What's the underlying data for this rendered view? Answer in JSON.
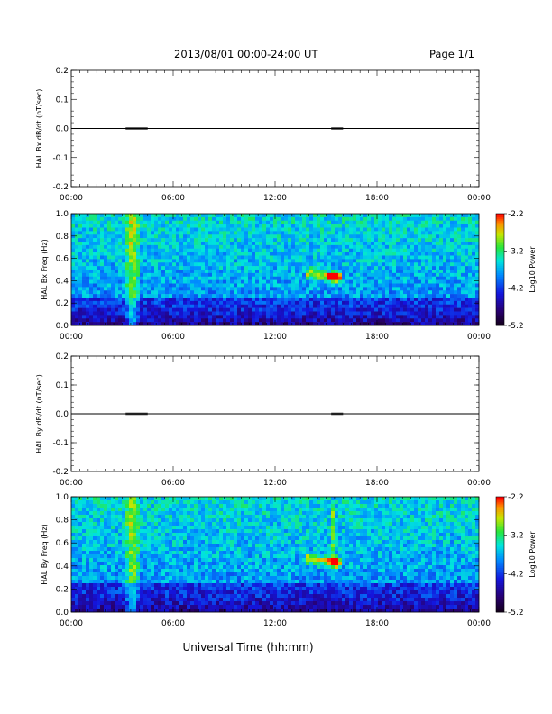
{
  "header": {
    "title": "2013/08/01  00:00-24:00 UT",
    "page": "Page 1/1"
  },
  "chart_data": [
    {
      "type": "line",
      "ylabel": "HAL Bx dB/dt (nT/sec)",
      "ylim": [
        -0.2,
        0.2
      ],
      "yticks": [
        "0.2",
        "0.1",
        "0.0",
        "-0.1",
        "-0.2"
      ],
      "xlim_hours": [
        0,
        24
      ],
      "xticks": [
        "00:00",
        "06:00",
        "12:00",
        "18:00",
        "00:00"
      ],
      "series": [
        {
          "x_hours": [
            0,
            3.2,
            4.5,
            15.3,
            16.0,
            24
          ],
          "values": [
            0.0,
            0.0,
            0.0,
            0.0,
            0.0,
            0.0
          ]
        }
      ]
    },
    {
      "type": "heatmap",
      "ylabel": "HAL Bx Freq (Hz)",
      "ylim": [
        0.0,
        1.0
      ],
      "yticks": [
        "1.0",
        "0.8",
        "0.6",
        "0.4",
        "0.2",
        "0.0"
      ],
      "xticks": [
        "00:00",
        "06:00",
        "12:00",
        "18:00",
        "00:00"
      ],
      "colorbar": {
        "label": "Log10 Power",
        "ticks": [
          "-2.2",
          "-3.2",
          "-4.2",
          "-5.2"
        ],
        "range": [
          -5.2,
          -2.2
        ]
      }
    },
    {
      "type": "line",
      "ylabel": "HAL By dB/dt (nT/sec)",
      "ylim": [
        -0.2,
        0.2
      ],
      "yticks": [
        "0.2",
        "0.1",
        "0.0",
        "-0.1",
        "-0.2"
      ],
      "xlim_hours": [
        0,
        24
      ],
      "xticks": [
        "00:00",
        "06:00",
        "12:00",
        "18:00",
        "00:00"
      ],
      "series": [
        {
          "x_hours": [
            0,
            3.2,
            4.5,
            15.3,
            16.0,
            24
          ],
          "values": [
            0.0,
            0.0,
            0.0,
            0.0,
            0.0,
            0.0
          ]
        }
      ]
    },
    {
      "type": "heatmap",
      "ylabel": "HAL By Freq (Hz)",
      "ylim": [
        0.0,
        1.0
      ],
      "yticks": [
        "1.0",
        "0.8",
        "0.6",
        "0.4",
        "0.2",
        "0.0"
      ],
      "xticks": [
        "00:00",
        "06:00",
        "12:00",
        "18:00",
        "00:00"
      ],
      "colorbar": {
        "label": "Log10 Power",
        "ticks": [
          "-2.2",
          "-3.2",
          "-4.2",
          "-5.2"
        ],
        "range": [
          -5.2,
          -2.2
        ]
      }
    }
  ],
  "xaxis_label": "Universal Time (hh:mm)"
}
